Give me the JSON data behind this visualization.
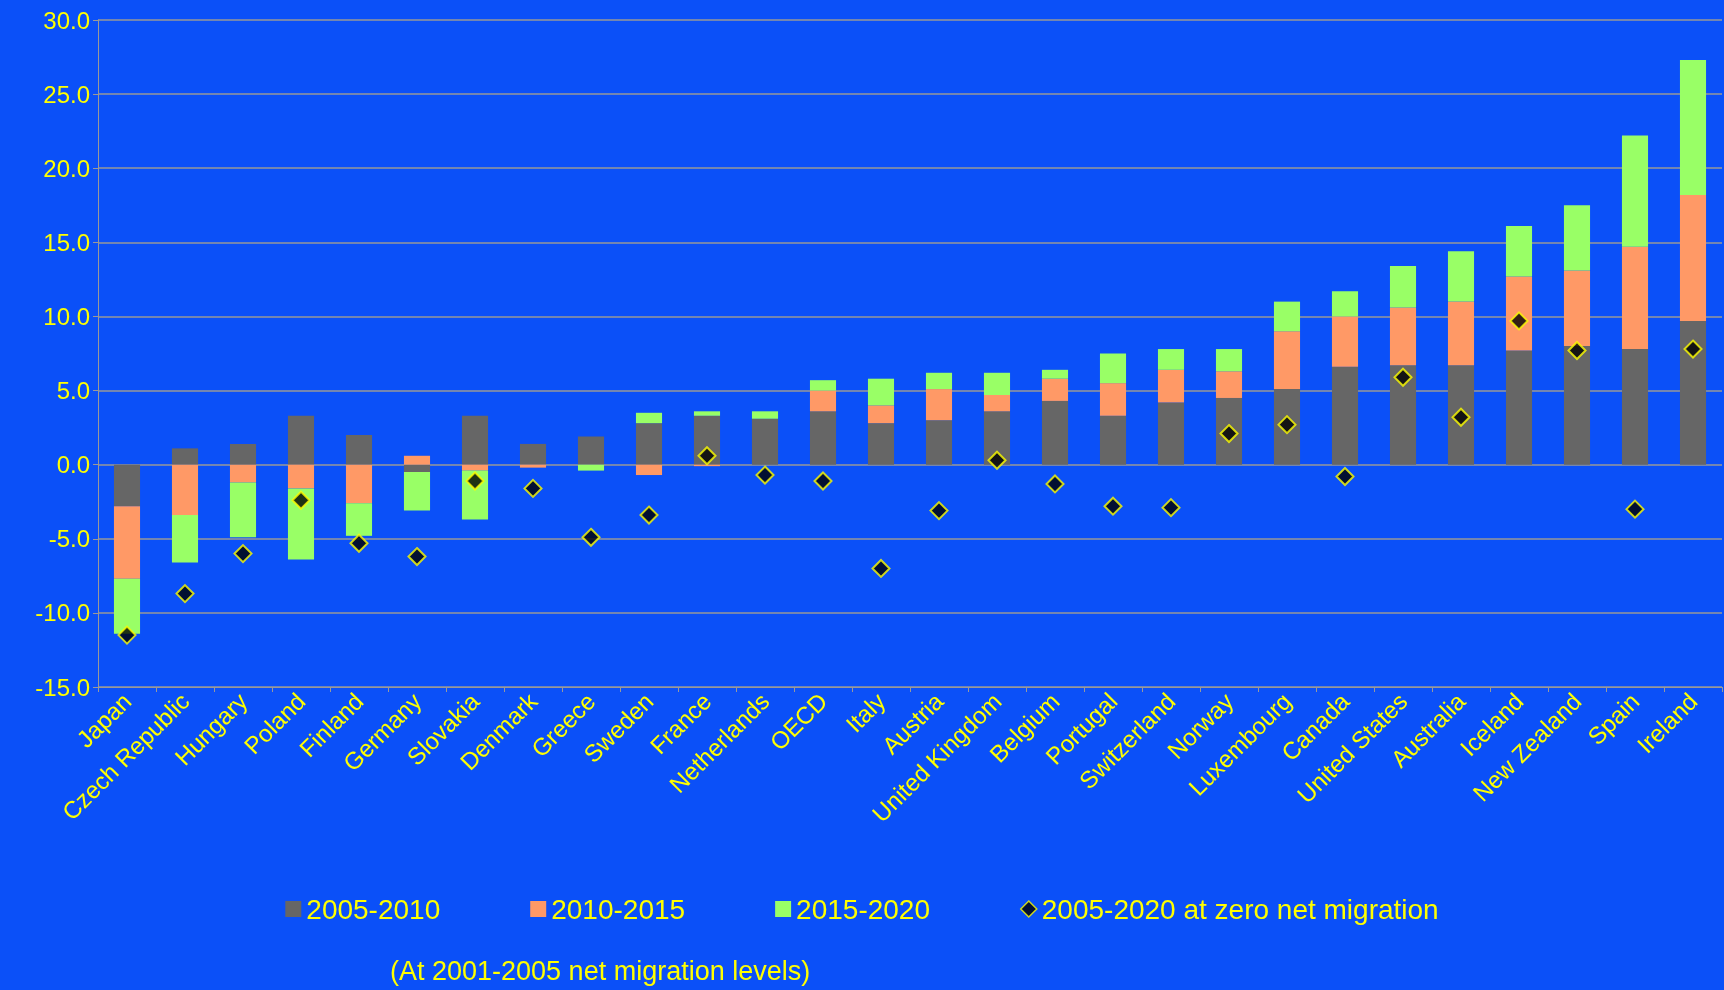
{
  "chart_data": {
    "type": "bar",
    "stacked": true,
    "categories": [
      "Japan",
      "Czech Republic",
      "Hungary",
      "Poland",
      "Finland",
      "Germany",
      "Slovakia",
      "Denmark",
      "Greece",
      "Sweden",
      "France",
      "Netherlands",
      "OECD",
      "Italy",
      "Austria",
      "United Kingdom",
      "Belgium",
      "Portugal",
      "Switzerland",
      "Norway",
      "Luxembourg",
      "Canada",
      "United States",
      "Australia",
      "Iceland",
      "New Zealand",
      "Spain",
      "Ireland"
    ],
    "series": [
      {
        "name": "2005-2010",
        "color": "#666666",
        "values": [
          -2.8,
          1.1,
          1.4,
          3.3,
          2.0,
          -0.5,
          3.3,
          1.4,
          1.9,
          2.8,
          3.3,
          3.1,
          3.6,
          2.8,
          3.0,
          3.6,
          4.3,
          3.3,
          4.2,
          4.5,
          5.1,
          6.6,
          6.7,
          6.7,
          7.7,
          8.0,
          7.8,
          9.7
        ]
      },
      {
        "name": "2010-2015",
        "color": "#ff9966",
        "values": [
          -4.9,
          -3.4,
          -1.2,
          -1.6,
          -2.6,
          0.6,
          -0.4,
          -0.2,
          0,
          -0.7,
          -0.1,
          0,
          1.4,
          1.2,
          2.1,
          1.1,
          1.5,
          2.2,
          2.2,
          1.8,
          3.9,
          3.4,
          3.9,
          4.3,
          5.0,
          5.1,
          6.9,
          8.5
        ]
      },
      {
        "name": "2015-2020",
        "color": "#99ff66",
        "values": [
          -3.7,
          -3.2,
          -3.7,
          -4.8,
          -2.2,
          -2.6,
          -3.3,
          0,
          -0.4,
          0.7,
          0.3,
          0.5,
          0.7,
          1.8,
          1.1,
          1.5,
          0.6,
          2.0,
          1.4,
          1.5,
          2.0,
          1.7,
          2.8,
          3.4,
          3.4,
          4.4,
          7.5,
          9.1
        ]
      },
      {
        "name": "2005-2020 at zero net migration",
        "type": "scatter",
        "marker": "diamond",
        "color": "#000000",
        "values": [
          -11.5,
          -8.7,
          -6.0,
          -2.4,
          -5.3,
          -6.2,
          -1.1,
          -1.6,
          -4.9,
          -3.4,
          0.6,
          -0.7,
          -1.1,
          -7.0,
          -3.1,
          0.3,
          -1.3,
          -2.8,
          -2.9,
          2.1,
          2.7,
          -0.8,
          5.9,
          3.2,
          9.7,
          7.7,
          -3.0,
          7.8
        ]
      }
    ],
    "ylim": [
      -15,
      30
    ],
    "yticks": [
      {
        "value": -15,
        "label": "-15.0"
      },
      {
        "value": -10,
        "label": "-10.0"
      },
      {
        "value": -5,
        "label": "-5.0"
      },
      {
        "value": 0,
        "label": "0.0"
      },
      {
        "value": 5,
        "label": "5.0"
      },
      {
        "value": 10,
        "label": "10.0"
      },
      {
        "value": 15,
        "label": "15.0"
      },
      {
        "value": 20,
        "label": "20.0"
      },
      {
        "value": 25,
        "label": "25.0"
      },
      {
        "value": 30,
        "label": "30.0"
      }
    ],
    "grid": "y",
    "legend": "bottom",
    "annotations": [
      "(At 2001-2005 net migration levels)"
    ]
  }
}
